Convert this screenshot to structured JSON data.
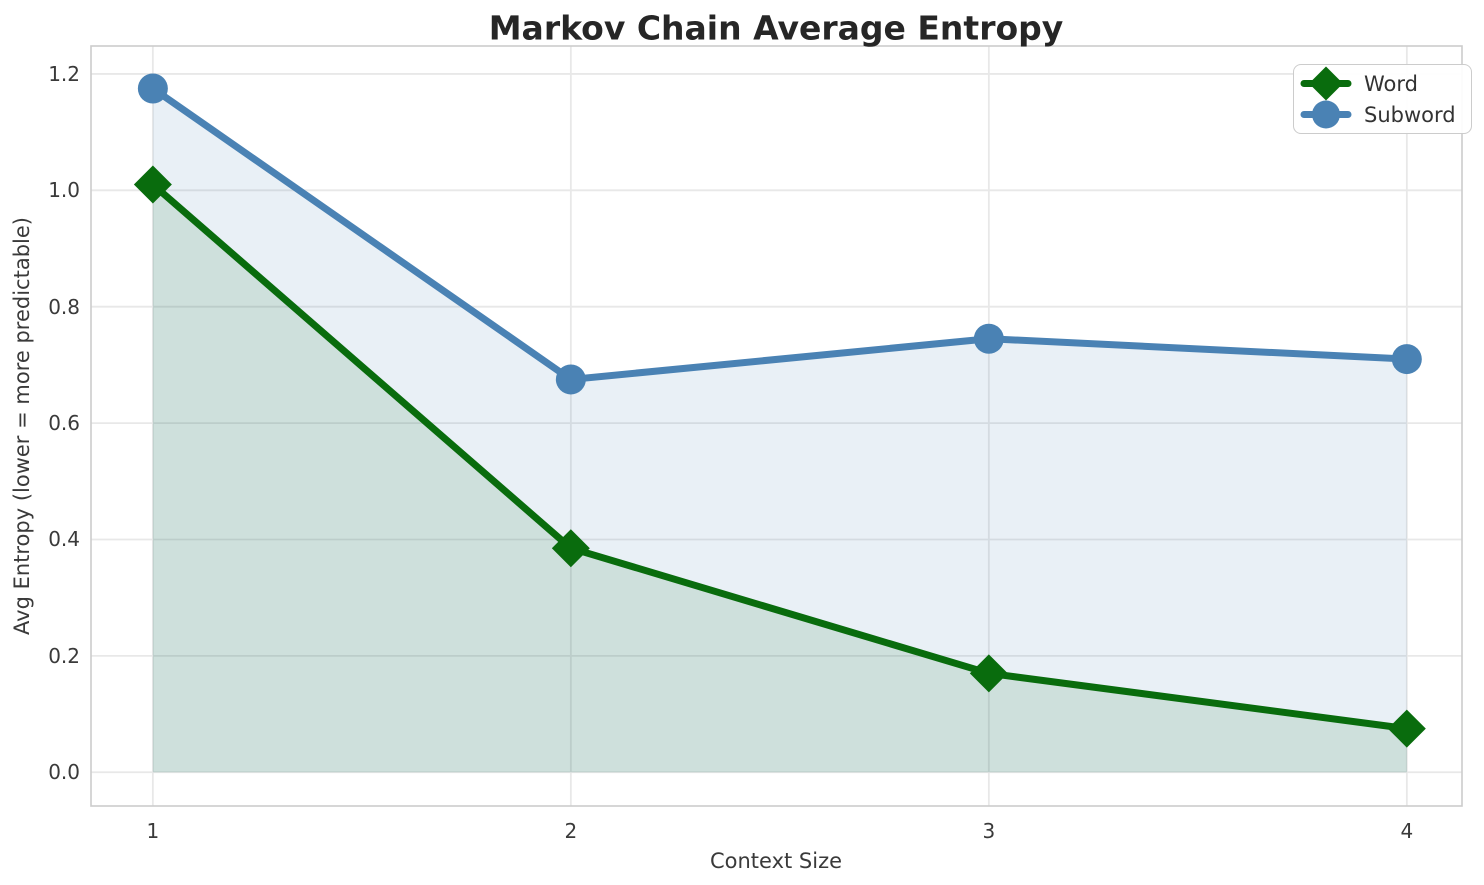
{
  "chart_data": {
    "type": "line",
    "title": "Markov Chain Average Entropy",
    "xlabel": "Context Size",
    "ylabel": "Avg Entropy (lower = more predictable)",
    "x": [
      1,
      2,
      3,
      4
    ],
    "series": [
      {
        "name": "Word",
        "values": [
          1.01,
          0.385,
          0.17,
          0.075
        ],
        "color": "#096c0d",
        "marker": "diamond",
        "fill_to_zero": true
      },
      {
        "name": "Subword",
        "values": [
          1.175,
          0.675,
          0.745,
          0.71
        ],
        "color": "#4a82b4",
        "marker": "circle",
        "fill_to_zero": true
      }
    ],
    "xticks": [
      {
        "value": 1,
        "label": "1"
      },
      {
        "value": 2,
        "label": "2"
      },
      {
        "value": 3,
        "label": "3"
      },
      {
        "value": 4,
        "label": "4"
      }
    ],
    "yticks": [
      {
        "value": 0.0,
        "label": "0.0"
      },
      {
        "value": 0.2,
        "label": "0.2"
      },
      {
        "value": 0.4,
        "label": "0.4"
      },
      {
        "value": 0.6,
        "label": "0.6"
      },
      {
        "value": 0.8,
        "label": "0.8"
      },
      {
        "value": 1.0,
        "label": "1.0"
      },
      {
        "value": 1.2,
        "label": "1.2"
      }
    ],
    "xlim": [
      0.852,
      4.132
    ],
    "ylim": [
      -0.058,
      1.248
    ],
    "grid": true,
    "fill_alpha": 0.12,
    "legend": {
      "position": "top-right",
      "entries": [
        "Word",
        "Subword"
      ]
    },
    "colors": {
      "grid": "#e8e8e8",
      "spine": "#cccccc",
      "tick_text": "#3a3a3a",
      "title_text": "#262626",
      "legend_border": "#cccccc",
      "legend_text": "#333333",
      "background": "#ffffff"
    }
  }
}
